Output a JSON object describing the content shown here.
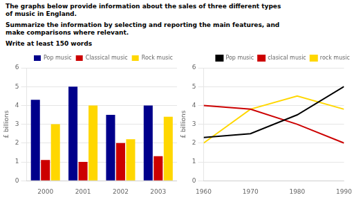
{
  "title": "The graphs below provide information about the sales of three different types\nof music in England.",
  "subtitle": "Summarize the information by selecting and reporting the main features, and\nmake comparisons where relevant.",
  "annotations": [
    "Write at least 150 words"
  ],
  "chart_data": [
    {
      "type": "bar",
      "categories": [
        "2000",
        "2001",
        "2002",
        "2003"
      ],
      "series": [
        {
          "name": "Pop music",
          "color": "#00008B",
          "values": [
            4.3,
            5.0,
            3.5,
            4.0
          ]
        },
        {
          "name": "Classical music",
          "color": "#CC0000",
          "values": [
            1.1,
            1.0,
            2.0,
            1.3
          ]
        },
        {
          "name": "Rock music",
          "color": "#FFD700",
          "values": [
            3.0,
            4.0,
            2.2,
            3.4
          ]
        }
      ],
      "ylabel": "£ billions",
      "ylim": [
        0,
        6
      ],
      "yticks": [
        0,
        1,
        2,
        3,
        4,
        5,
        6
      ],
      "grid": true,
      "legend": "upper right"
    },
    {
      "type": "line",
      "x": [
        1960,
        1970,
        1980,
        1990
      ],
      "series": [
        {
          "name": "Pop music",
          "color": "#000000",
          "values": [
            2.3,
            2.5,
            3.5,
            5.0
          ]
        },
        {
          "name": "clasical music",
          "color": "#CC0000",
          "values": [
            4.0,
            3.8,
            3.0,
            2.0
          ]
        },
        {
          "name": "rock music",
          "color": "#FFD700",
          "values": [
            2.0,
            3.8,
            4.5,
            3.8
          ]
        }
      ],
      "ylabel": "£ billions",
      "xlim": [
        1960,
        1990
      ],
      "xticks": [
        1960,
        1970,
        1980,
        1990
      ],
      "ylim": [
        0,
        6
      ],
      "yticks": [
        0,
        1,
        2,
        3,
        4,
        5,
        6
      ],
      "grid": true,
      "legend": "upper right"
    }
  ]
}
